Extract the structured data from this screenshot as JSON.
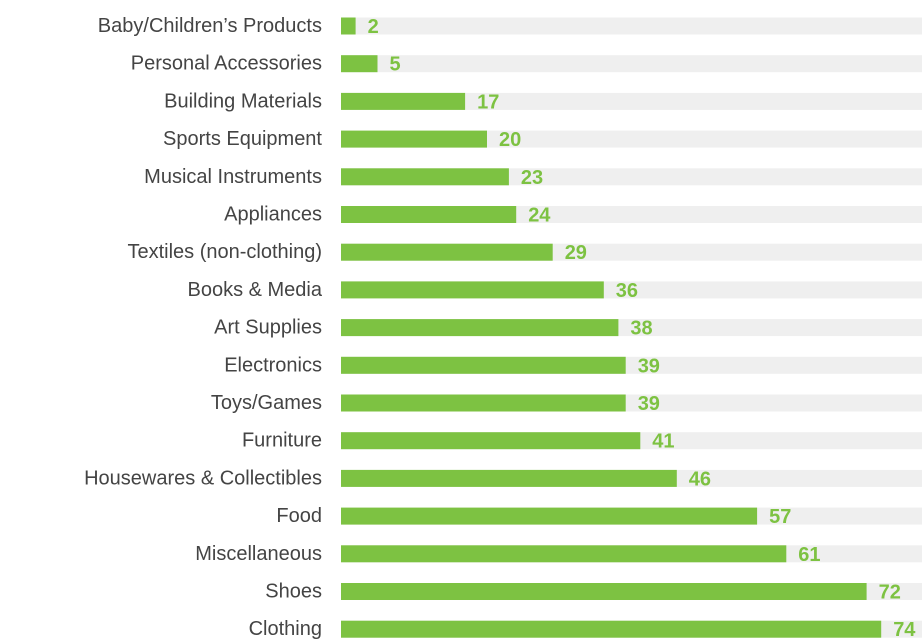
{
  "chart_data": {
    "type": "bar",
    "orientation": "horizontal",
    "title": "",
    "xlabel": "",
    "ylabel": "",
    "categories": [
      "Baby/Children’s Products",
      "Personal Accessories",
      "Building Materials",
      "Sports Equipment",
      "Musical Instruments",
      "Appliances",
      "Textiles (non-clothing)",
      "Books & Media",
      "Art Supplies",
      "Electronics",
      "Toys/Games",
      "Furniture",
      "Housewares & Collectibles",
      "Food",
      "Miscellaneous",
      "Shoes",
      "Clothing"
    ],
    "values": [
      2,
      5,
      17,
      20,
      23,
      24,
      29,
      36,
      38,
      39,
      39,
      41,
      46,
      57,
      61,
      72,
      74
    ],
    "xlim": [
      0,
      80
    ],
    "grid": false,
    "legend": "none",
    "colors": {
      "bar": "#7dc242",
      "track": "#efefef",
      "value_label": "#7dc242",
      "category_label": "#444444"
    }
  }
}
